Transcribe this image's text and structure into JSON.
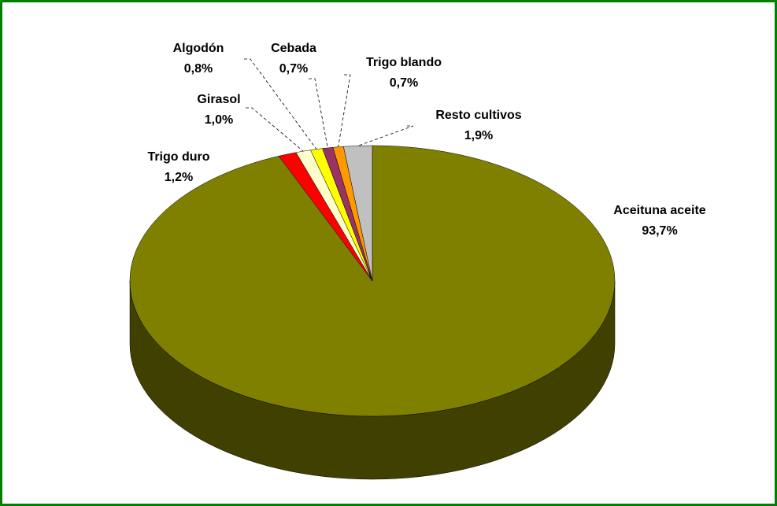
{
  "chart_data": {
    "type": "pie3d",
    "categories": [
      "Aceituna aceite",
      "Trigo duro",
      "Girasol",
      "Algodón",
      "Cebada",
      "Trigo blando",
      "Resto cultivos"
    ],
    "values": [
      93.7,
      1.2,
      1.0,
      0.8,
      0.7,
      0.7,
      1.9
    ],
    "value_labels": [
      "93,7%",
      "1,2%",
      "1,0%",
      "0,8%",
      "0,7%",
      "0,7%",
      "1,9%"
    ],
    "colors": [
      "#808000",
      "#ff0000",
      "#ffffcc",
      "#ffff00",
      "#993366",
      "#ff9900",
      "#c0c0c0"
    ]
  }
}
